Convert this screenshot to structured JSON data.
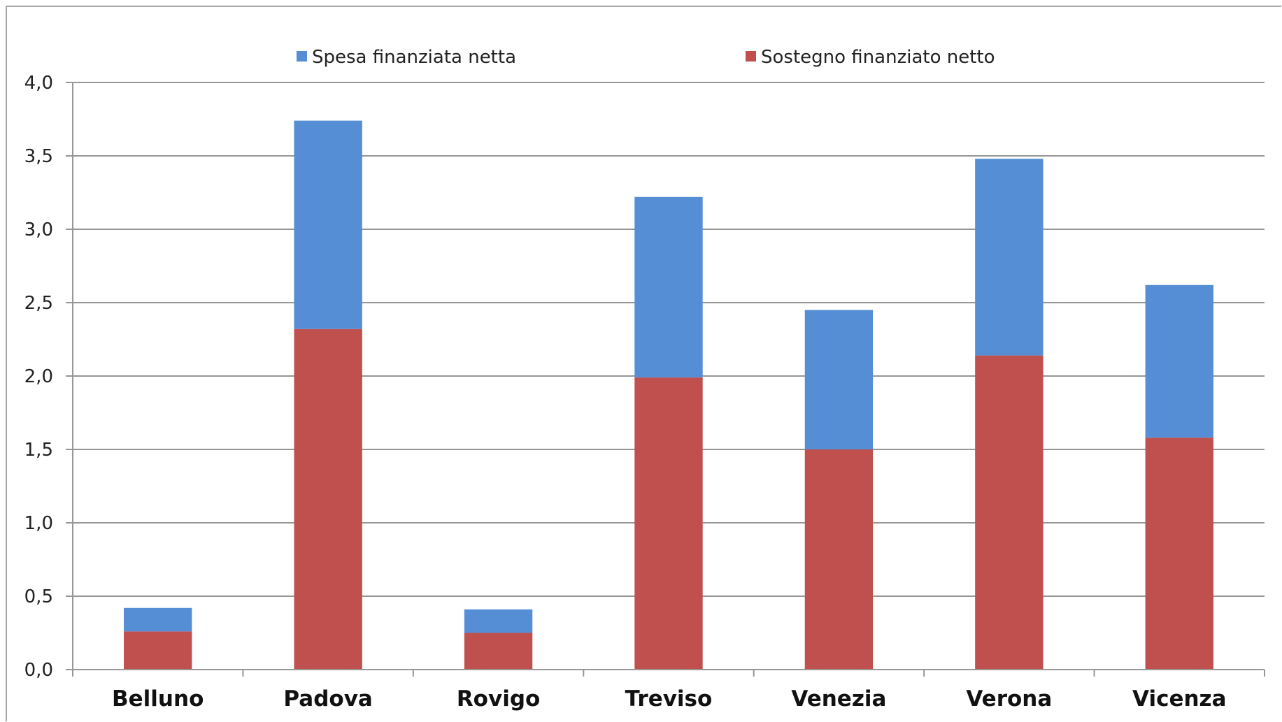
{
  "chart_data": {
    "type": "bar",
    "stacked": true,
    "categories": [
      "Belluno",
      "Padova",
      "Rovigo",
      "Treviso",
      "Venezia",
      "Verona",
      "Vicenza"
    ],
    "series": [
      {
        "name": "Sostegno finanziato netto",
        "color": "#c0504d",
        "values": [
          0.26,
          2.32,
          0.25,
          1.99,
          1.5,
          2.14,
          1.58
        ]
      },
      {
        "name": "Spesa finanziata netta",
        "color": "#558ed5",
        "values": [
          0.16,
          1.42,
          0.16,
          1.23,
          0.95,
          1.34,
          1.04
        ]
      }
    ],
    "yticks": [
      "0,0",
      "0,5",
      "1,0",
      "1,5",
      "2,0",
      "2,5",
      "3,0",
      "3,5",
      "4,0"
    ],
    "ylim": [
      0,
      4
    ],
    "grid": true,
    "legend": {
      "position": "top",
      "items": [
        {
          "label": "Spesa finanziata netta",
          "color": "#558ed5"
        },
        {
          "label": "Sostegno finanziato netto",
          "color": "#c0504d"
        }
      ]
    }
  }
}
